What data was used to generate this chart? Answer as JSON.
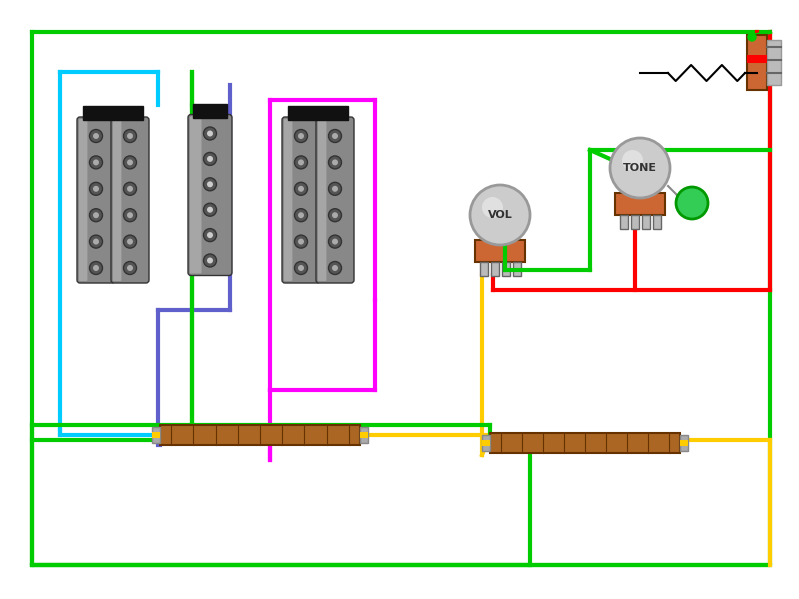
{
  "bg_color": "#ffffff",
  "green": "#00cc00",
  "cyan": "#00ccff",
  "blue": "#6060cc",
  "magenta": "#ff00ff",
  "red": "#ff0000",
  "yellow": "#ffcc00",
  "brown": "#996633",
  "brown_dark": "#663300",
  "gray_body": "#888888",
  "gray_light": "#cccccc",
  "gray_pole_outer": "#333333",
  "gray_pole_inner": "#aaaaaa",
  "black": "#000000",
  "orange_brown": "#cc6633",
  "green_ball": "#33cc55",
  "lw_wire": 3.0,
  "lw_thin": 1.5
}
